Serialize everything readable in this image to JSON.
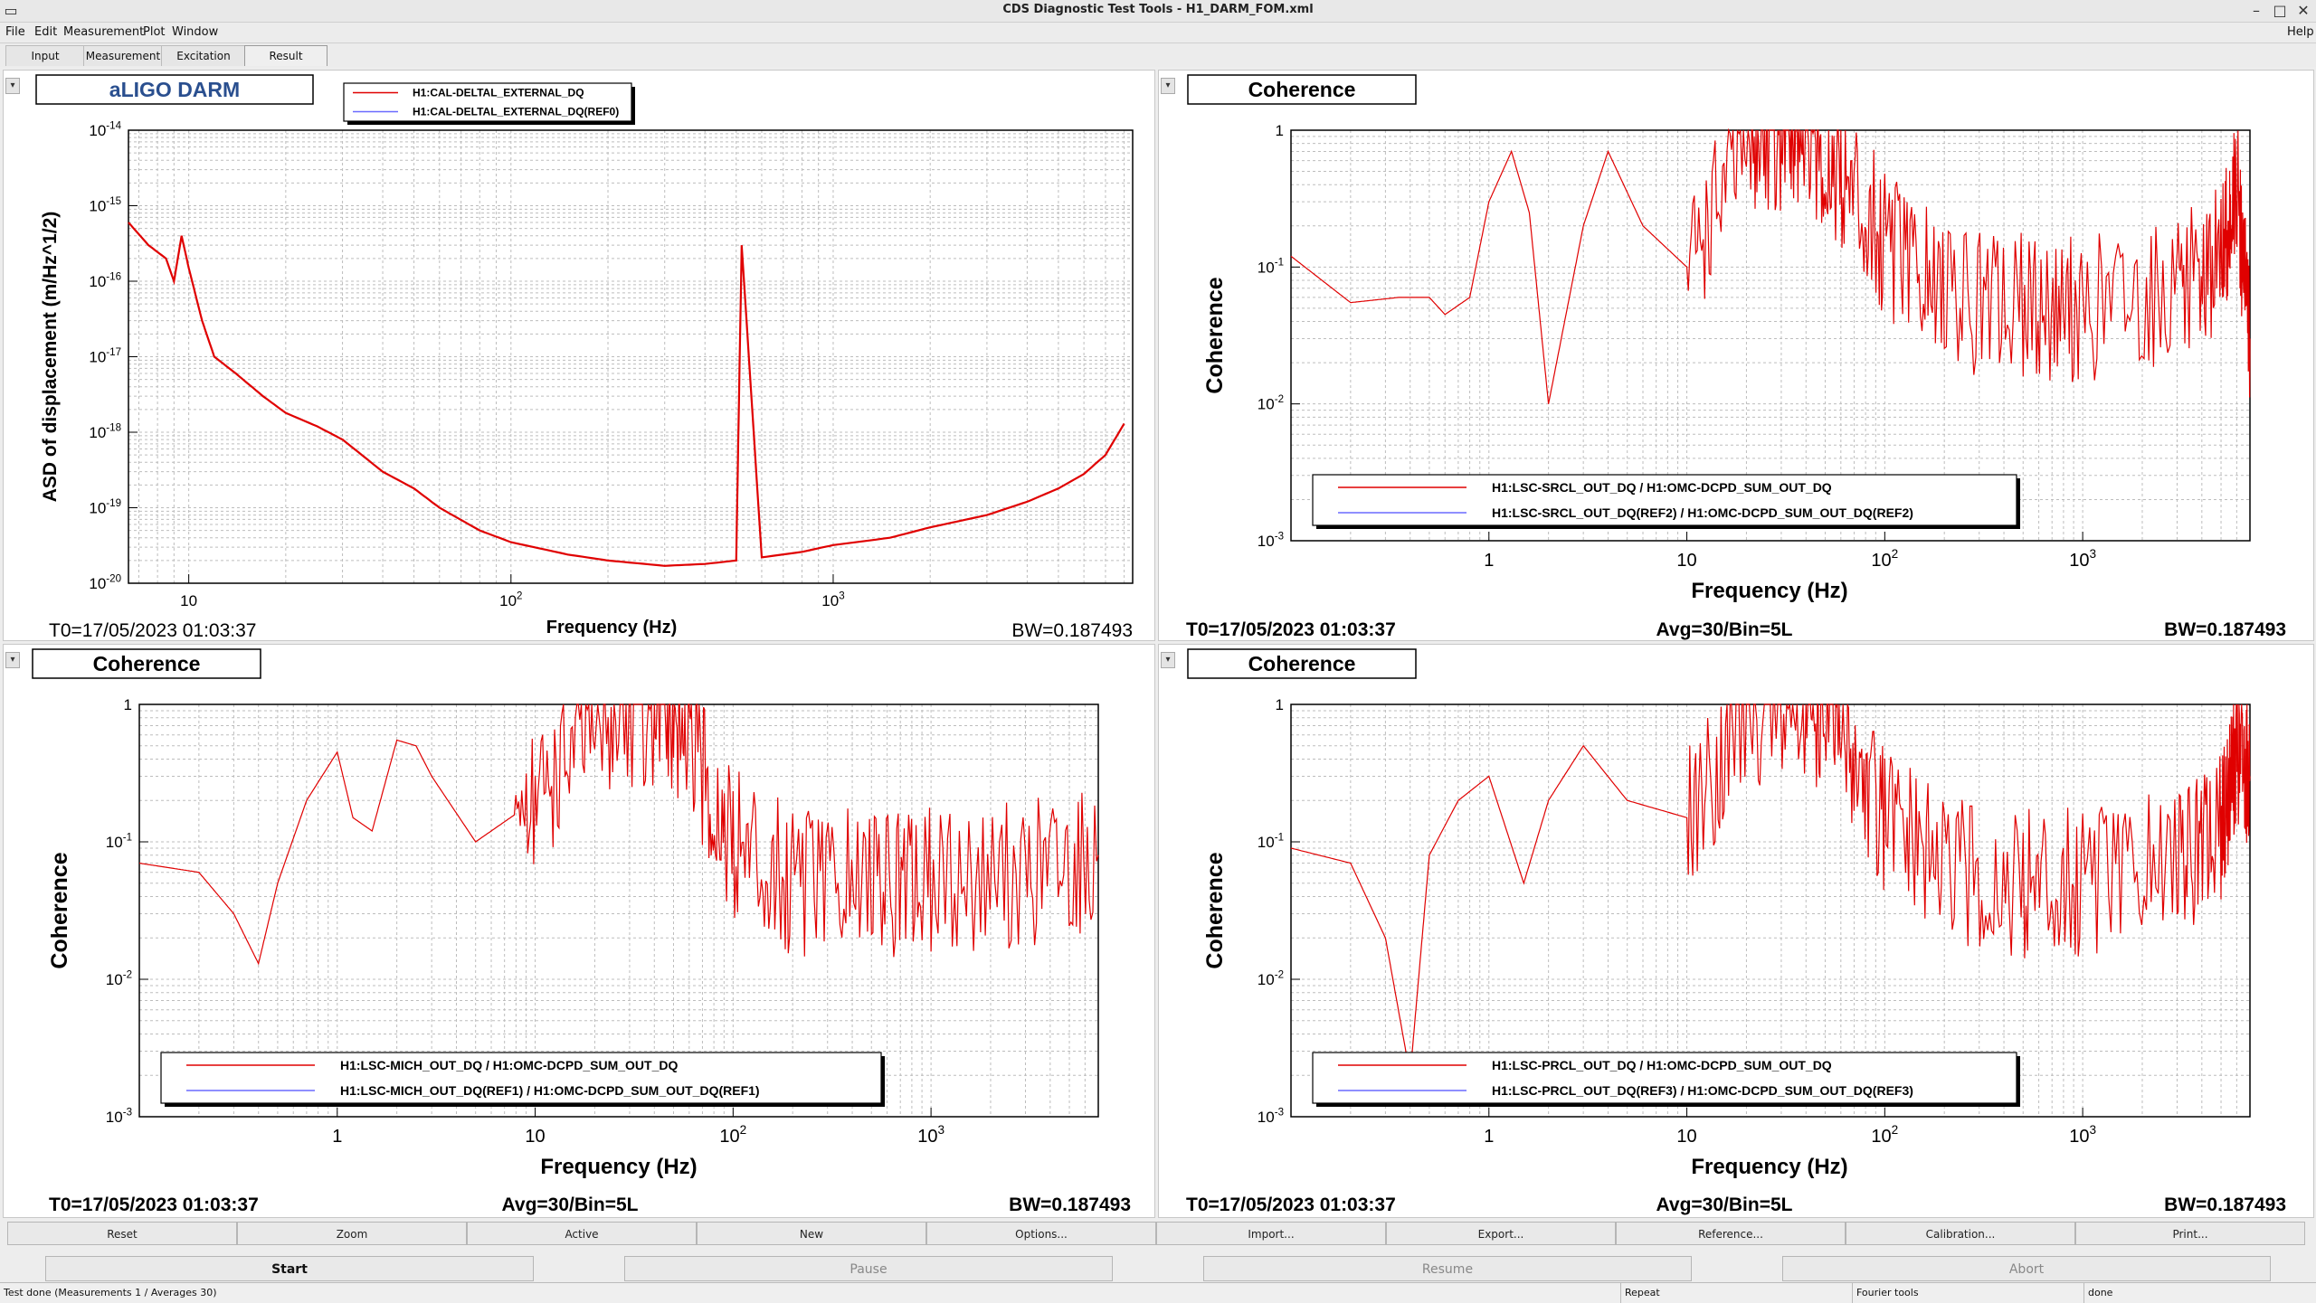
{
  "window": {
    "title": "CDS Diagnostic Test Tools - H1_DARM_FOM.xml",
    "help": "Help"
  },
  "menu": [
    "File",
    "Edit",
    "Measurement",
    "Plot",
    "Window"
  ],
  "tabs": [
    "Input",
    "Measurement",
    "Excitation",
    "Result"
  ],
  "active_tab": "Result",
  "panels": [
    {
      "title": "aLIGO DARM",
      "ylabel": "ASD of displacement (m/Hz^1/2)",
      "xlabel": "Frequency (Hz)",
      "yticks": [
        "10^-14",
        "10^-15",
        "10^-16",
        "10^-17",
        "10^-18",
        "10^-19",
        "10^-20"
      ],
      "xticks": [
        "10",
        "10^2",
        "10^3"
      ],
      "legend": [
        "H1:CAL-DELTAL_EXTERNAL_DQ",
        "H1:CAL-DELTAL_EXTERNAL_DQ(REF0)"
      ],
      "footer_left": "T0=17/05/2023 01:03:37",
      "footer_mid": "",
      "footer_right": "BW=0.187493"
    },
    {
      "title": "Coherence",
      "ylabel": "Coherence",
      "xlabel": "Frequency (Hz)",
      "yticks": [
        "1",
        "10^-1",
        "10^-2",
        "10^-3"
      ],
      "xticks": [
        "1",
        "10",
        "10^2",
        "10^3"
      ],
      "legend": [
        "H1:LSC-SRCL_OUT_DQ / H1:OMC-DCPD_SUM_OUT_DQ",
        "H1:LSC-SRCL_OUT_DQ(REF2) / H1:OMC-DCPD_SUM_OUT_DQ(REF2)"
      ],
      "footer_left": "T0=17/05/2023 01:03:37",
      "footer_mid": "Avg=30/Bin=5L",
      "footer_right": "BW=0.187493"
    },
    {
      "title": "Coherence",
      "ylabel": "Coherence",
      "xlabel": "Frequency (Hz)",
      "yticks": [
        "1",
        "10^-1",
        "10^-2",
        "10^-3"
      ],
      "xticks": [
        "1",
        "10",
        "10^2",
        "10^3"
      ],
      "legend": [
        "H1:LSC-MICH_OUT_DQ / H1:OMC-DCPD_SUM_OUT_DQ",
        "H1:LSC-MICH_OUT_DQ(REF1) / H1:OMC-DCPD_SUM_OUT_DQ(REF1)"
      ],
      "footer_left": "T0=17/05/2023 01:03:37",
      "footer_mid": "Avg=30/Bin=5L",
      "footer_right": "BW=0.187493"
    },
    {
      "title": "Coherence",
      "ylabel": "Coherence",
      "xlabel": "Frequency (Hz)",
      "yticks": [
        "1",
        "10^-1",
        "10^-2",
        "10^-3"
      ],
      "xticks": [
        "1",
        "10",
        "10^2",
        "10^3"
      ],
      "legend": [
        "H1:LSC-PRCL_OUT_DQ / H1:OMC-DCPD_SUM_OUT_DQ",
        "H1:LSC-PRCL_OUT_DQ(REF3) / H1:OMC-DCPD_SUM_OUT_DQ(REF3)"
      ],
      "footer_left": "T0=17/05/2023 01:03:37",
      "footer_mid": "Avg=30/Bin=5L",
      "footer_right": "BW=0.187493"
    }
  ],
  "plot_buttons": [
    "Reset",
    "Zoom",
    "Active",
    "New",
    "Options...",
    "Import...",
    "Export...",
    "Reference...",
    "Calibration...",
    "Print..."
  ],
  "control_buttons": [
    "Start",
    "Pause",
    "Resume",
    "Abort"
  ],
  "status": [
    "Test done (Measurements 1 / Averages 30)",
    "Repeat",
    "Fourier tools",
    "done"
  ],
  "colors": {
    "trace": "#e00000",
    "ref_trace": "#6a6aff",
    "grid": "#bdbdbd"
  },
  "chart_data": [
    {
      "type": "line",
      "title": "aLIGO DARM",
      "xlabel": "Frequency (Hz)",
      "ylabel": "ASD of displacement (m/Hz^1/2)",
      "xscale": "log",
      "yscale": "log",
      "xlim": [
        6.5,
        8500
      ],
      "ylim": [
        1e-20,
        1e-14
      ],
      "grid": true,
      "legend_position": "top",
      "series": [
        {
          "name": "H1:CAL-DELTAL_EXTERNAL_DQ",
          "x": [
            6.5,
            7.5,
            8.5,
            9,
            9.5,
            10,
            11,
            12,
            14,
            17,
            20,
            25,
            30,
            40,
            50,
            60,
            80,
            100,
            150,
            200,
            300,
            400,
            500,
            520,
            600,
            800,
            1000,
            1500,
            2000,
            3000,
            4000,
            5000,
            6000,
            7000,
            8000
          ],
          "y": [
            6e-16,
            3e-16,
            2e-16,
            1e-16,
            4e-16,
            1.5e-16,
            3e-17,
            1e-17,
            6e-18,
            3e-18,
            1.8e-18,
            1.2e-18,
            8e-19,
            3e-19,
            1.8e-19,
            1e-19,
            5e-20,
            3.5e-20,
            2.4e-20,
            2e-20,
            1.7e-20,
            1.8e-20,
            2e-20,
            3e-16,
            2.2e-20,
            2.6e-20,
            3.2e-20,
            4e-20,
            5.5e-20,
            8e-20,
            1.2e-19,
            1.8e-19,
            2.8e-19,
            5e-19,
            1.3e-18
          ]
        }
      ]
    },
    {
      "type": "line",
      "title": "Coherence",
      "xlabel": "Frequency (Hz)",
      "ylabel": "Coherence",
      "xscale": "log",
      "yscale": "log",
      "xlim": [
        0.1,
        7000
      ],
      "ylim": [
        0.001,
        1
      ],
      "grid": true,
      "legend_position": "bottom",
      "series": [
        {
          "name": "H1:LSC-SRCL_OUT_DQ / H1:OMC-DCPD_SUM_OUT_DQ",
          "x": [
            0.1,
            0.2,
            0.35,
            0.5,
            0.6,
            0.8,
            1,
            1.3,
            1.6,
            2,
            3,
            4,
            6,
            10,
            20,
            30,
            40,
            60,
            100,
            200,
            500,
            1000,
            3000,
            5000,
            6000,
            7000
          ],
          "y": [
            0.12,
            0.055,
            0.06,
            0.06,
            0.045,
            0.06,
            0.3,
            0.7,
            0.25,
            0.01,
            0.2,
            0.7,
            0.2,
            0.1,
            0.8,
            0.9,
            0.85,
            0.5,
            0.15,
            0.06,
            0.05,
            0.05,
            0.07,
            0.12,
            0.4,
            0.03
          ]
        }
      ]
    },
    {
      "type": "line",
      "title": "Coherence",
      "xlabel": "Frequency (Hz)",
      "ylabel": "Coherence",
      "xscale": "log",
      "yscale": "log",
      "xlim": [
        0.1,
        7000
      ],
      "ylim": [
        0.001,
        1
      ],
      "grid": true,
      "legend_position": "bottom",
      "series": [
        {
          "name": "H1:LSC-MICH_OUT_DQ / H1:OMC-DCPD_SUM_OUT_DQ",
          "x": [
            0.1,
            0.2,
            0.3,
            0.4,
            0.5,
            0.7,
            1,
            1.2,
            1.5,
            2,
            2.5,
            3,
            5,
            10,
            20,
            40,
            60,
            100,
            200,
            500,
            1000,
            3000,
            7000
          ],
          "y": [
            0.07,
            0.06,
            0.03,
            0.013,
            0.05,
            0.2,
            0.45,
            0.15,
            0.12,
            0.55,
            0.5,
            0.3,
            0.1,
            0.2,
            0.7,
            0.9,
            0.5,
            0.1,
            0.05,
            0.05,
            0.05,
            0.06,
            0.08
          ]
        }
      ]
    },
    {
      "type": "line",
      "title": "Coherence",
      "xlabel": "Frequency (Hz)",
      "ylabel": "Coherence",
      "xscale": "log",
      "yscale": "log",
      "xlim": [
        0.1,
        7000
      ],
      "ylim": [
        0.001,
        1
      ],
      "grid": true,
      "legend_position": "bottom",
      "series": [
        {
          "name": "H1:LSC-PRCL_OUT_DQ / H1:OMC-DCPD_SUM_OUT_DQ",
          "x": [
            0.1,
            0.2,
            0.3,
            0.4,
            0.5,
            0.7,
            1,
            1.5,
            2,
            3,
            5,
            10,
            20,
            40,
            60,
            100,
            200,
            500,
            1000,
            3000,
            5000,
            6000,
            7000
          ],
          "y": [
            0.09,
            0.07,
            0.02,
            0.002,
            0.08,
            0.2,
            0.3,
            0.05,
            0.2,
            0.5,
            0.2,
            0.15,
            0.8,
            0.9,
            0.6,
            0.15,
            0.06,
            0.05,
            0.05,
            0.07,
            0.12,
            0.5,
            0.3
          ]
        }
      ]
    }
  ]
}
